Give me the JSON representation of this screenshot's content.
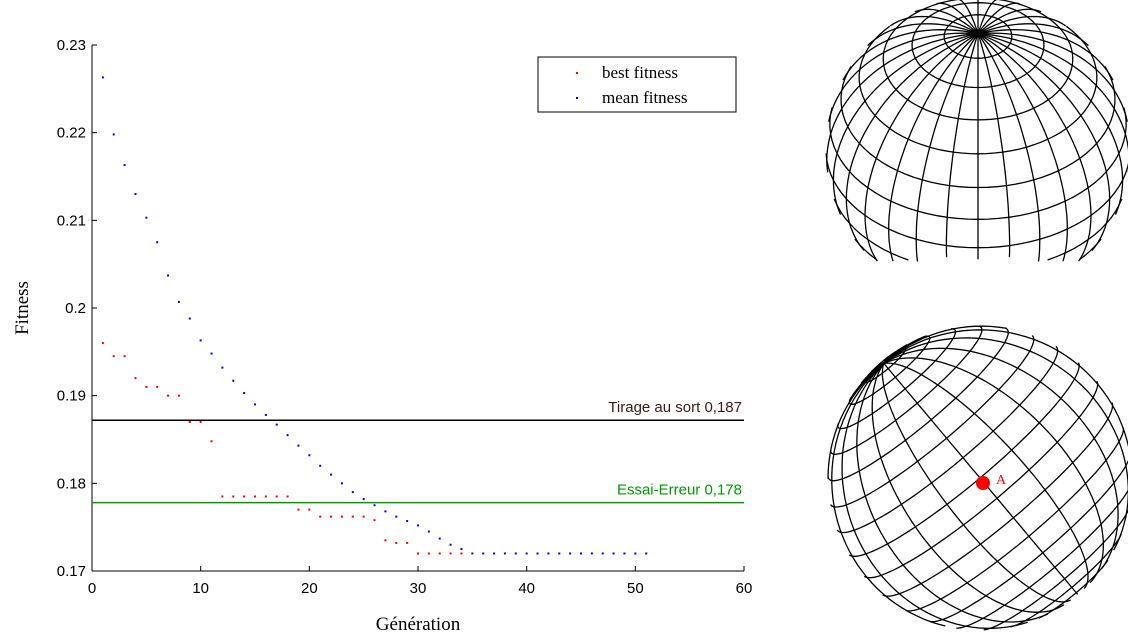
{
  "chart_data": {
    "type": "scatter",
    "xlabel": "Génération",
    "ylabel": "Fitness",
    "xlim": [
      0,
      60
    ],
    "ylim": [
      0.17,
      0.23
    ],
    "xticks": [
      "0",
      "10",
      "20",
      "30",
      "40",
      "50",
      "60"
    ],
    "yticks": [
      "0.17",
      "0.18",
      "0.19",
      "0.2",
      "0.21",
      "0.22",
      "0.23"
    ],
    "legend_position": "top-right",
    "series": [
      {
        "name": "best fitness",
        "color": "#ff0000",
        "x": [
          1,
          2,
          3,
          4,
          5,
          6,
          7,
          8,
          9,
          10,
          11,
          12,
          13,
          14,
          15,
          16,
          17,
          18,
          19,
          20,
          21,
          22,
          23,
          24,
          25,
          26,
          27,
          28,
          29,
          30,
          31,
          32,
          33,
          34
        ],
        "y": [
          0.196,
          0.1945,
          0.1945,
          0.192,
          0.191,
          0.191,
          0.19,
          0.19,
          0.187,
          0.187,
          0.1848,
          0.1785,
          0.1785,
          0.1785,
          0.1785,
          0.1785,
          0.1785,
          0.1785,
          0.177,
          0.177,
          0.1762,
          0.1762,
          0.1762,
          0.1762,
          0.1762,
          0.1758,
          0.1735,
          0.1732,
          0.1732,
          0.172,
          0.172,
          0.172,
          0.172,
          0.172
        ]
      },
      {
        "name": "mean fitness",
        "color": "#0000ff",
        "x": [
          1,
          2,
          3,
          4,
          5,
          6,
          7,
          8,
          9,
          10,
          11,
          12,
          13,
          14,
          15,
          16,
          17,
          18,
          19,
          20,
          21,
          22,
          23,
          24,
          25,
          26,
          27,
          28,
          29,
          30,
          31,
          32,
          33,
          34,
          35,
          36,
          37,
          38,
          39,
          40,
          41,
          42,
          43,
          44,
          45,
          46,
          47,
          48,
          49,
          50,
          51
        ],
        "y": [
          0.2263,
          0.2198,
          0.2163,
          0.213,
          0.2103,
          0.2075,
          0.2037,
          0.2007,
          0.1988,
          0.1963,
          0.1948,
          0.1932,
          0.1917,
          0.1903,
          0.189,
          0.1878,
          0.1867,
          0.1855,
          0.1843,
          0.1832,
          0.182,
          0.181,
          0.18,
          0.179,
          0.1782,
          0.1775,
          0.1768,
          0.1762,
          0.1757,
          0.1752,
          0.1745,
          0.1737,
          0.173,
          0.1725,
          0.172,
          0.172,
          0.172,
          0.172,
          0.172,
          0.172,
          0.172,
          0.172,
          0.172,
          0.172,
          0.172,
          0.172,
          0.172,
          0.172,
          0.172,
          0.172,
          0.172
        ]
      }
    ],
    "reference_lines": [
      {
        "label": "Tirage au sort 0,187",
        "y": 0.1872,
        "color": "#000000",
        "text_color": "#3b1a1a"
      },
      {
        "label": "Essai-Erreur 0,178",
        "y": 0.1778,
        "color": "#009900",
        "text_color": "#009900"
      }
    ],
    "annotation": {
      "point_label": "A",
      "color": "#ff0000"
    }
  }
}
